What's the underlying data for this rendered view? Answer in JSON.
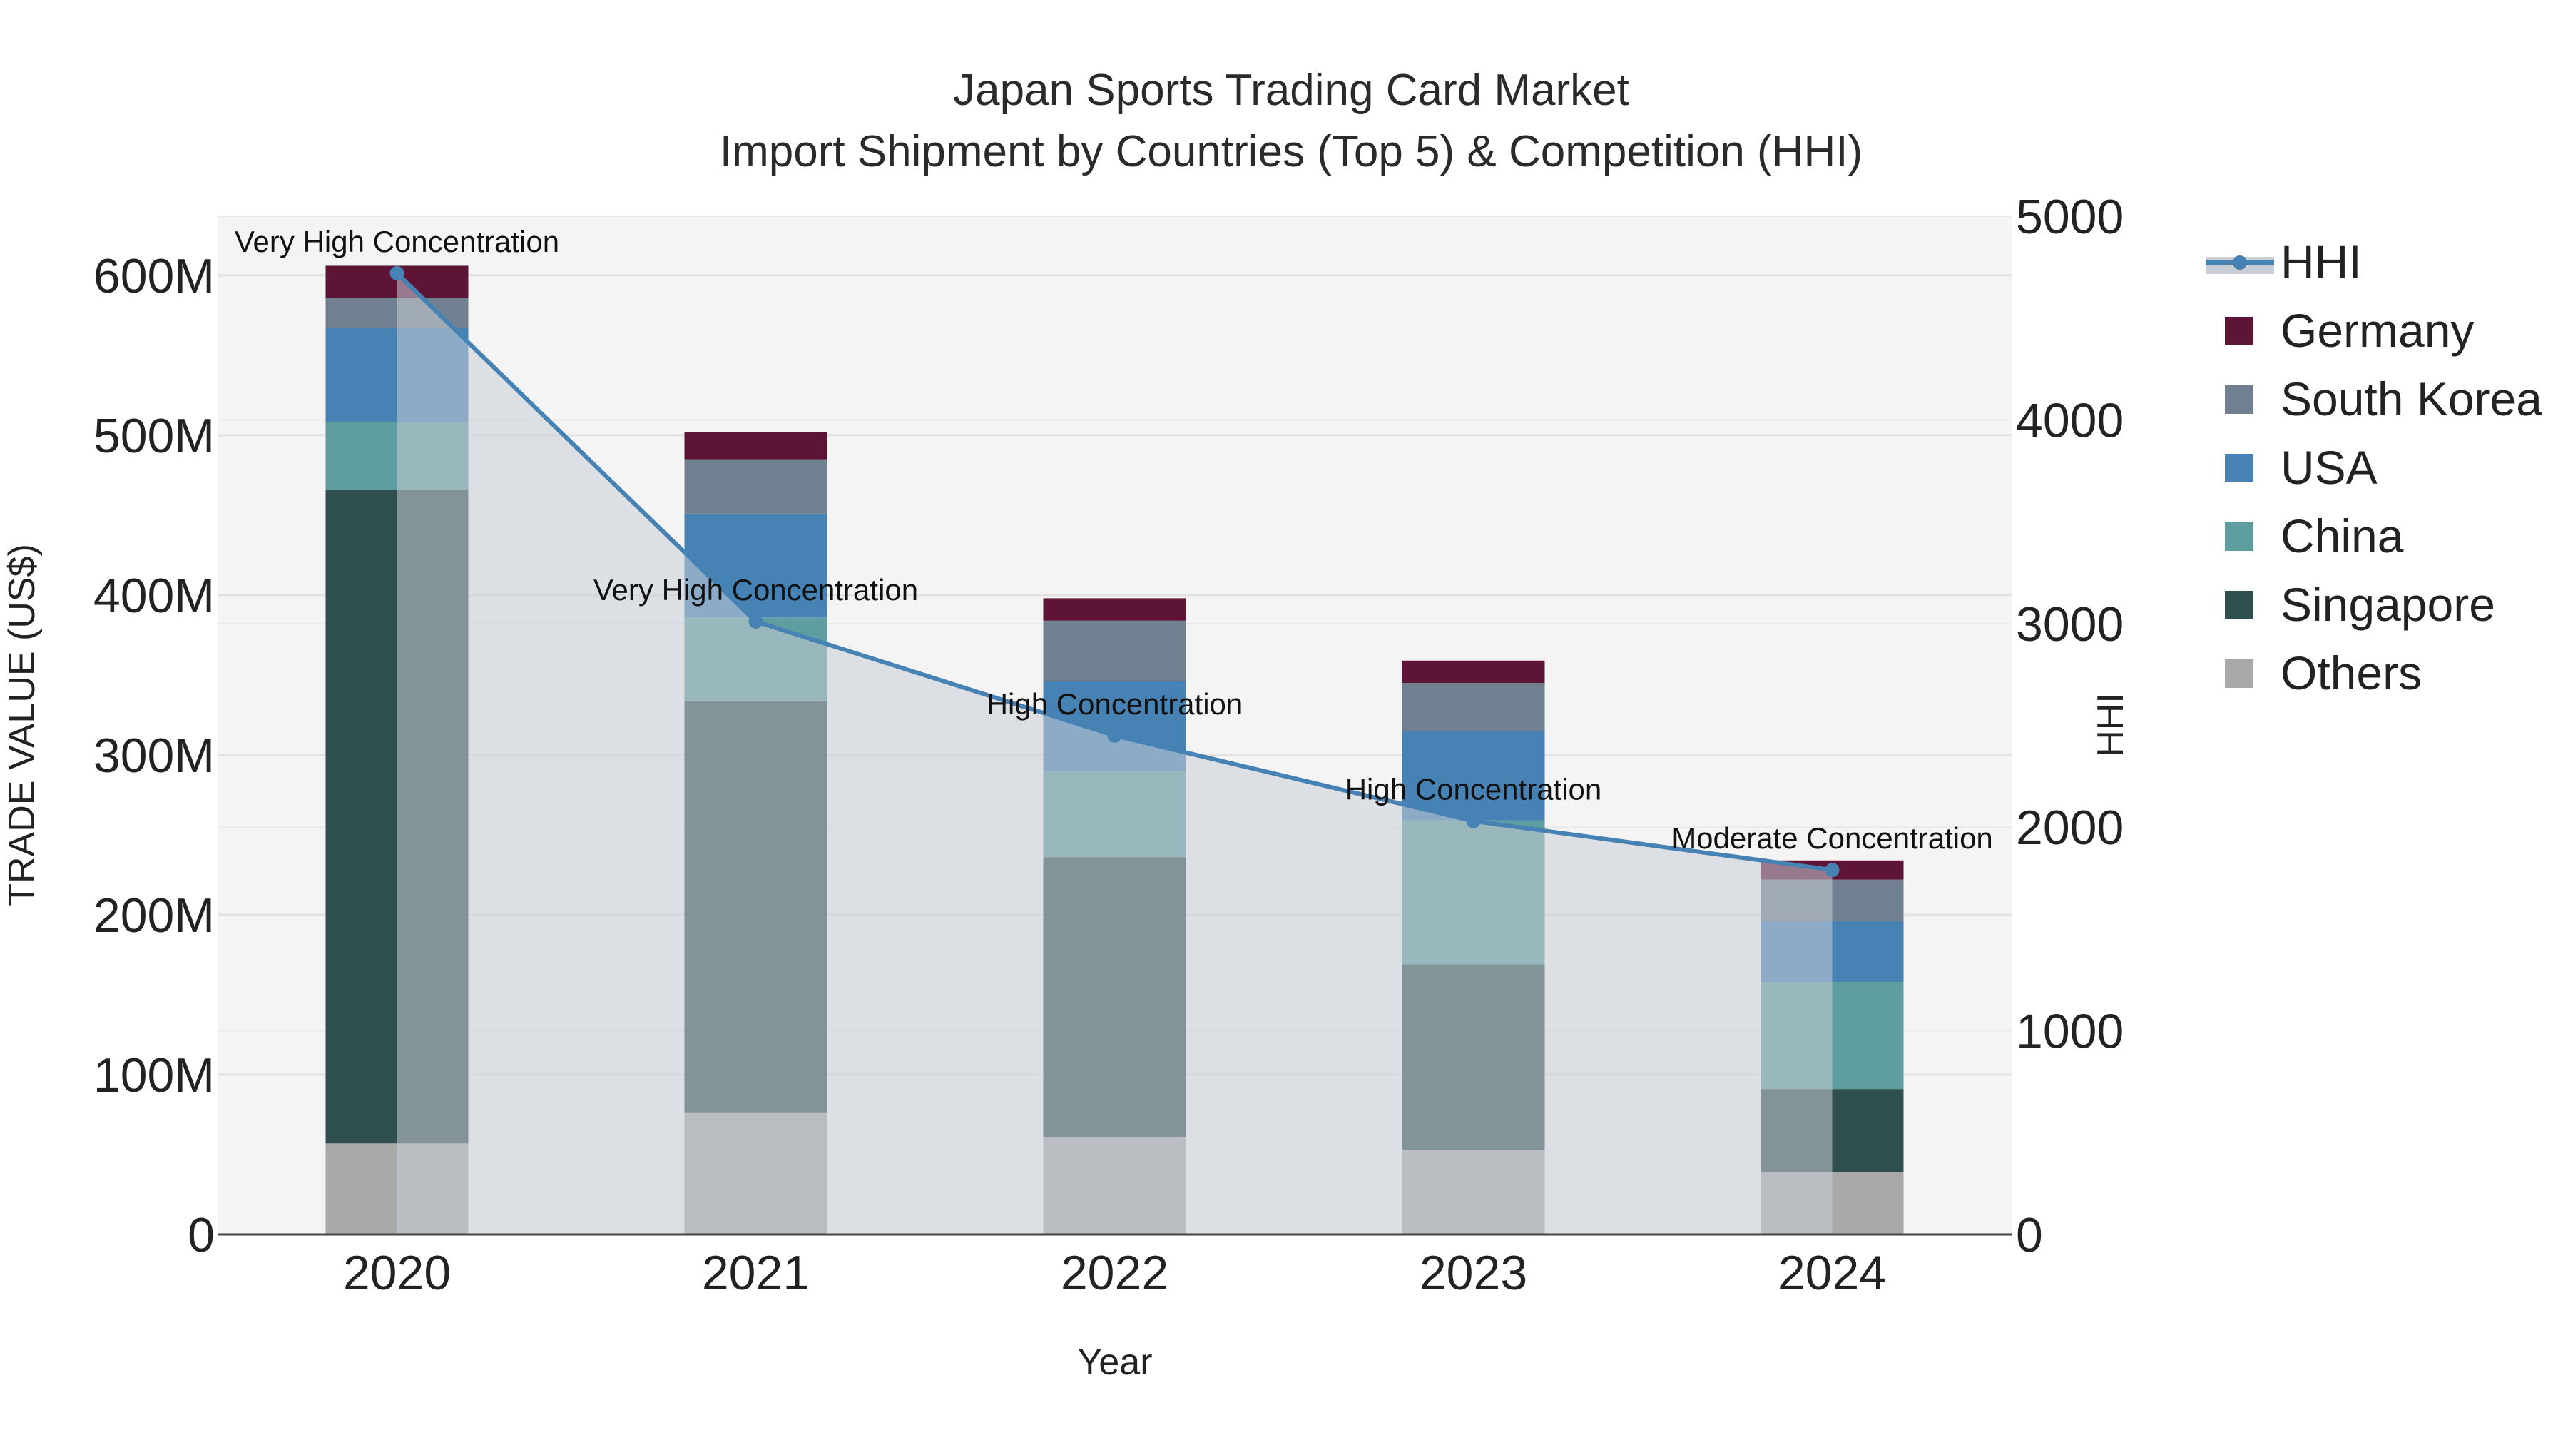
{
  "chart_data": {
    "type": "bar",
    "title": "Japan Sports Trading Card Market",
    "subtitle": "Import Shipment by Countries (Top 5) & Competition (HHI)",
    "xlabel": "Year",
    "ylabel": "TRADE VALUE (US$)",
    "y2label": "HHI",
    "categories": [
      "2020",
      "2021",
      "2022",
      "2023",
      "2024"
    ],
    "ylim": [
      0,
      637
    ],
    "y_ticks": [
      0,
      100,
      200,
      300,
      400,
      500,
      600
    ],
    "y_tick_labels": [
      "0",
      "100M",
      "200M",
      "300M",
      "400M",
      "500M",
      "600M"
    ],
    "y2lim": [
      0,
      5000
    ],
    "y2_ticks": [
      0,
      1000,
      2000,
      3000,
      4000,
      5000
    ],
    "y2_tick_labels": [
      "0",
      "1000",
      "2000",
      "3000",
      "4000",
      "5000"
    ],
    "value_unit": "million US$",
    "series": [
      {
        "name": "Others",
        "color": "#a9a9a9",
        "values": [
          57,
          76,
          61,
          53,
          39
        ]
      },
      {
        "name": "Singapore",
        "color": "#2f4f4f",
        "values": [
          409,
          258,
          175,
          116,
          52
        ]
      },
      {
        "name": "China",
        "color": "#5f9ea0",
        "values": [
          42,
          52,
          54,
          90,
          67
        ]
      },
      {
        "name": "USA",
        "color": "#4682b4",
        "values": [
          59,
          65,
          56,
          56,
          38
        ]
      },
      {
        "name": "South Korea",
        "color": "#708090",
        "values": [
          19,
          34,
          38,
          30,
          26
        ]
      },
      {
        "name": "Germany",
        "color": "#5e1535",
        "values": [
          20,
          17,
          14,
          14,
          12
        ]
      }
    ],
    "line": {
      "name": "HHI",
      "color": "#4682b4",
      "fill_color": "#c9cdd5",
      "values": [
        4720,
        3010,
        2450,
        2030,
        1790
      ]
    },
    "annotations": [
      "Very High Concentration",
      "Very High Concentration",
      "High Concentration",
      "High Concentration",
      "Moderate Concentration"
    ],
    "legend": [
      "HHI",
      "Germany",
      "South Korea",
      "USA",
      "China",
      "Singapore",
      "Others"
    ],
    "legend_position": "top-right",
    "grid": true
  }
}
